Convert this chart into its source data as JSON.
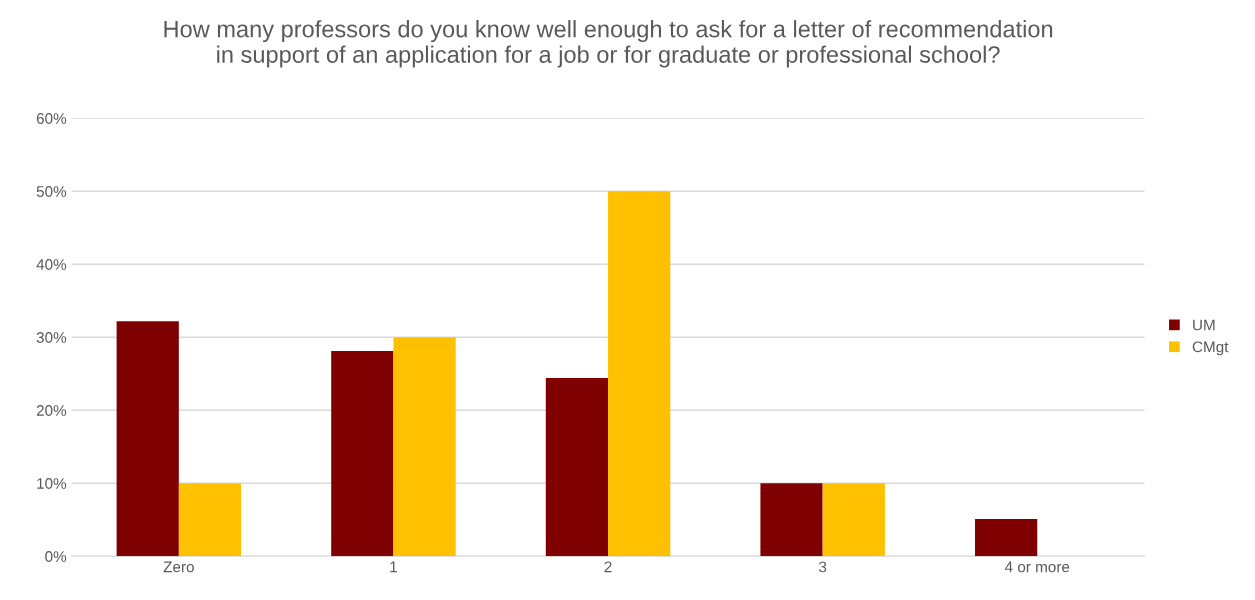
{
  "chart_data": {
    "type": "bar",
    "title": "How many professors do you know well enough to ask for a letter of recommendation\nin support of an application for a job or for graduate or professional school?",
    "categories": [
      "Zero",
      "1",
      "2",
      "3",
      "4 or more"
    ],
    "series": [
      {
        "name": "UM",
        "color": "#7f0000",
        "values": [
          32.2,
          28.1,
          24.4,
          10,
          5.1
        ]
      },
      {
        "name": "CMgt",
        "color": "#ffc000",
        "values": [
          10,
          30,
          50,
          10,
          0
        ]
      }
    ],
    "ylim": [
      0,
      60
    ],
    "yticks": [
      {
        "value": 0,
        "label": "0%"
      },
      {
        "value": 10,
        "label": "10%"
      },
      {
        "value": 20,
        "label": "20%"
      },
      {
        "value": 30,
        "label": "30%"
      },
      {
        "value": 40,
        "label": "40%"
      },
      {
        "value": 50,
        "label": "50%"
      },
      {
        "value": 60,
        "label": "60%"
      }
    ],
    "grid": "y",
    "legend": "right"
  }
}
